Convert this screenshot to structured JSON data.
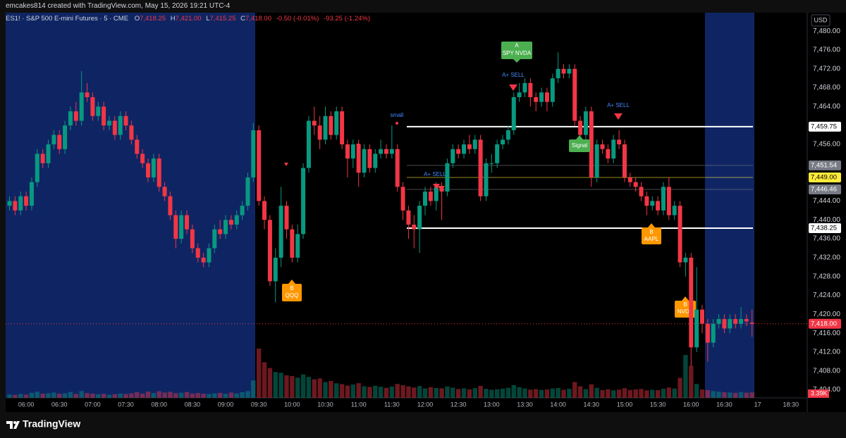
{
  "header": {
    "credit": "emcakes814 created with TradingView.com, May 15, 2026 19:21 UTC-4",
    "symbol": "ES1! · S&P 500 E-mini Futures · 5 · CME",
    "legend": [
      {
        "key": "O",
        "value": "7,418.25"
      },
      {
        "key": "H",
        "value": "7,421.00"
      },
      {
        "key": "L",
        "value": "7,415.25"
      },
      {
        "key": "C",
        "value": "7,418.00"
      }
    ],
    "change": "-0.50 (-0.01%)",
    "day_change": "-93.25 (-1.24%)",
    "currency": "USD"
  },
  "footer": {
    "logo": "TradingView"
  },
  "annotations": {
    "labels": [
      {
        "lines": [
          "A",
          "SPY NVDA"
        ]
      },
      {
        "lines": [
          "B",
          "QQQ"
        ]
      },
      {
        "lines": [
          "B",
          "AAPL"
        ]
      },
      {
        "lines": [
          "B",
          "NVDA"
        ]
      },
      {
        "lines": [
          "Signal"
        ]
      }
    ],
    "texts": [
      "A+ SELL",
      "A+ SELL",
      "A+ SELL",
      "small"
    ]
  },
  "chart_data": {
    "type": "candlestick",
    "grid": false,
    "categories": [
      null,
      null,
      null,
      "06:00",
      null,
      null,
      null,
      null,
      null,
      "06:30",
      null,
      null,
      null,
      null,
      null,
      "07:00",
      null,
      null,
      null,
      null,
      null,
      "07:30",
      null,
      null,
      null,
      null,
      null,
      "08:00",
      null,
      null,
      null,
      null,
      null,
      "08:30",
      null,
      null,
      null,
      null,
      null,
      "09:00",
      null,
      null,
      null,
      null,
      null,
      "09:30",
      null,
      null,
      null,
      null,
      null,
      "10:00",
      null,
      null,
      null,
      null,
      null,
      "10:30",
      null,
      null,
      null,
      null,
      null,
      "11:00",
      null,
      null,
      null,
      null,
      null,
      "11:30",
      null,
      null,
      null,
      null,
      null,
      "12:00",
      null,
      null,
      null,
      null,
      null,
      "12:30",
      null,
      null,
      null,
      null,
      null,
      "13:00",
      null,
      null,
      null,
      null,
      null,
      "13:30",
      null,
      null,
      null,
      null,
      null,
      "14:00",
      null,
      null,
      null,
      null,
      null,
      "14:30",
      null,
      null,
      null,
      null,
      null,
      "15:00",
      null,
      null,
      null,
      null,
      null,
      "15:30",
      null,
      null,
      null,
      null,
      null,
      "16:00",
      null,
      null,
      null,
      null,
      null,
      "16:30",
      null,
      null,
      null,
      null,
      null,
      "17",
      null,
      null,
      null,
      null,
      null,
      "18:30"
    ],
    "candles": {
      "up_color": "#089981",
      "down_color": "#f23645",
      "volume_label": "3.39K",
      "open": [
        7443,
        7444,
        7442,
        7445,
        7443,
        7448,
        7454,
        7452,
        7456,
        7458,
        7455,
        7460,
        7463,
        7461,
        7467,
        7466,
        7462,
        7464,
        7460,
        7461,
        7458,
        7462,
        7460,
        7457,
        7454,
        7452,
        7449,
        7453,
        7447,
        7445,
        7441,
        7436,
        7441,
        7438,
        7434,
        7432,
        7431,
        7434,
        7438,
        7437,
        7440,
        7439,
        7441,
        7443,
        7449,
        7459,
        7444,
        7440,
        7427,
        7432,
        7443,
        7438,
        7432,
        7437,
        7451,
        7461,
        7460,
        7457,
        7462,
        7458,
        7463,
        7456,
        7453,
        7456,
        7450,
        7455,
        7451,
        7454,
        7455,
        7454,
        7455,
        7447,
        7442,
        7439,
        7438,
        7443,
        7446,
        7444,
        7447,
        7446,
        7452,
        7455,
        7454,
        7456,
        7455,
        7457,
        7445,
        7452,
        7452,
        7456,
        7457,
        7459,
        7466,
        7467,
        7469,
        7466,
        7465,
        7467,
        7465,
        7470,
        7472,
        7471,
        7472,
        7461,
        7458,
        7463,
        7449,
        7456,
        7455,
        7453,
        7457,
        7456,
        7449,
        7448,
        7447,
        7445,
        7443,
        7444,
        7442,
        7447,
        7441,
        7443,
        7431,
        7432,
        7413,
        7421,
        7418,
        7414,
        7418,
        7419,
        7417,
        7419,
        7418,
        7419,
        7418.25,
        null,
        null,
        null,
        null,
        null,
        null,
        null
      ],
      "high": [
        7445,
        7445,
        7446,
        7446,
        7449,
        7455,
        7455,
        7457,
        7459,
        7459,
        7461,
        7464,
        7465,
        7471.5,
        7469,
        7467,
        7465,
        7465,
        7462,
        7462,
        7463,
        7463,
        7461,
        7458,
        7455,
        7453,
        7454,
        7454,
        7448,
        7446,
        7442,
        7442,
        7442,
        7439,
        7435,
        7433,
        7435,
        7439,
        7440,
        7441,
        7441,
        7442,
        7444,
        7450,
        7460.5,
        7460,
        7445,
        7441,
        7434,
        7447,
        7444,
        7439,
        7439,
        7452,
        7462,
        7464,
        7462,
        7464,
        7463,
        7464,
        7464,
        7457,
        7457,
        7457,
        7456,
        7456,
        7455,
        7457,
        7456,
        7460,
        7456,
        7448,
        7443,
        7441,
        7444,
        7447,
        7447,
        7448,
        7448,
        7453,
        7456,
        7456,
        7457,
        7458,
        7458,
        7458,
        7453,
        7454,
        7457,
        7458,
        7460,
        7467,
        7469,
        7470,
        7470,
        7467,
        7468,
        7468,
        7471,
        7475.5,
        7473,
        7473,
        7473,
        7462,
        7464,
        7464,
        7457,
        7457,
        7456,
        7458,
        7459,
        7457,
        7450,
        7449,
        7448,
        7446,
        7445,
        7445,
        7448,
        7449,
        7444,
        7444,
        7433,
        7433,
        7430,
        7422,
        7419,
        7419,
        7420,
        7420,
        7420,
        7420,
        7421.5,
        7420,
        7421,
        null,
        null,
        null,
        null,
        null,
        null,
        null
      ],
      "low": [
        7442,
        7441,
        7441,
        7442,
        7442,
        7447,
        7451,
        7451,
        7455,
        7454,
        7454,
        7459,
        7460,
        7460,
        7465,
        7461,
        7461,
        7459,
        7459,
        7457,
        7457,
        7459,
        7456,
        7453,
        7451,
        7448,
        7448,
        7446,
        7444,
        7440,
        7434,
        7435,
        7437,
        7433,
        7431,
        7430,
        7430,
        7433,
        7436,
        7436,
        7438,
        7438,
        7440,
        7442,
        7448,
        7443,
        7438,
        7426,
        7422.5,
        7430,
        7436,
        7431,
        7431,
        7436,
        7450,
        7458,
        7455,
        7456,
        7457,
        7457,
        7455,
        7449,
        7451,
        7447,
        7449,
        7450,
        7450,
        7453,
        7453,
        7453,
        7446,
        7440,
        7436,
        7434,
        7433,
        7441,
        7443,
        7442,
        7440,
        7445,
        7451,
        7453,
        7453,
        7454,
        7454,
        7444,
        7444,
        7450,
        7451,
        7455,
        7456,
        7458,
        7465,
        7466,
        7464,
        7463,
        7464,
        7463,
        7464,
        7469,
        7470,
        7470,
        7460,
        7457,
        7457,
        7447,
        7448,
        7454,
        7452,
        7452,
        7455,
        7448,
        7447,
        7446,
        7444,
        7441,
        7442,
        7441,
        7441,
        7440,
        7440,
        7430,
        7428,
        7409,
        7412,
        7416,
        7410,
        7413,
        7417,
        7416,
        7416,
        7417,
        7417,
        7417.5,
        7415.25,
        null,
        null,
        null,
        null,
        null,
        null,
        null
      ],
      "close": [
        7444,
        7442,
        7445,
        7443,
        7448,
        7454,
        7452,
        7456,
        7458,
        7455,
        7460,
        7463,
        7461,
        7467,
        7466,
        7462,
        7464,
        7460,
        7461,
        7458,
        7462,
        7460,
        7457,
        7454,
        7452,
        7449,
        7453,
        7447,
        7445,
        7441,
        7436,
        7441,
        7438,
        7434,
        7432,
        7431,
        7434,
        7438,
        7437,
        7440,
        7439,
        7441,
        7443,
        7449,
        7459,
        7444,
        7440,
        7427,
        7432,
        7443,
        7438,
        7432,
        7437,
        7451,
        7461,
        7460,
        7457,
        7462,
        7458,
        7463,
        7456,
        7453,
        7456,
        7450,
        7455,
        7451,
        7454,
        7455,
        7454,
        7455,
        7447,
        7442,
        7439,
        7438,
        7443,
        7446,
        7444,
        7447,
        7446,
        7452,
        7455,
        7454,
        7456,
        7455,
        7457,
        7445,
        7452,
        7452,
        7456,
        7457,
        7459,
        7466,
        7467,
        7469,
        7466,
        7465,
        7467,
        7465,
        7470,
        7472,
        7471,
        7472,
        7461,
        7458,
        7463,
        7449,
        7456,
        7455,
        7453,
        7457,
        7456,
        7449,
        7448,
        7447,
        7445,
        7443,
        7444,
        7442,
        7447,
        7441,
        7443,
        7431,
        7432,
        7413,
        7421,
        7418,
        7414,
        7418,
        7419,
        7417,
        7419,
        7418,
        7419,
        7418.5,
        7418,
        null,
        null,
        null,
        null,
        null,
        null,
        null
      ],
      "volume": [
        2100,
        1800,
        2400,
        2000,
        3100,
        3800,
        2600,
        2900,
        3300,
        2500,
        2800,
        3600,
        2400,
        4200,
        3000,
        2600,
        2200,
        2500,
        1900,
        2300,
        2700,
        2400,
        2800,
        3500,
        2600,
        3900,
        3000,
        4100,
        3300,
        3700,
        2900,
        3200,
        3600,
        2700,
        3000,
        2600,
        2400,
        2800,
        3100,
        2500,
        3300,
        2700,
        3500,
        4200,
        10800,
        30500,
        22000,
        18500,
        16000,
        15500,
        14000,
        13500,
        12500,
        14500,
        13000,
        11500,
        12000,
        9800,
        10500,
        9000,
        8500,
        7600,
        8200,
        9100,
        7200,
        6800,
        7500,
        6900,
        6200,
        7000,
        8600,
        7800,
        7100,
        6400,
        7300,
        5800,
        6600,
        6100,
        5900,
        7000,
        6300,
        5500,
        5900,
        5200,
        6000,
        7400,
        5600,
        5000,
        5300,
        5700,
        6200,
        7900,
        6600,
        5800,
        5100,
        5400,
        4900,
        5200,
        5800,
        6100,
        5000,
        5600,
        9800,
        7200,
        5400,
        8400,
        6200,
        4800,
        5300,
        4700,
        5100,
        6000,
        4900,
        5200,
        5500,
        4600,
        5000,
        4800,
        5600,
        6400,
        5800,
        12400,
        26500,
        19800,
        8600,
        5200,
        4800,
        4200,
        3800,
        3500,
        3300,
        3100,
        3600,
        3200,
        3390,
        null,
        null,
        null,
        null,
        null,
        null,
        null
      ]
    },
    "ylim": [
      7402.3,
      7483.9
    ],
    "yticks": [
      {
        "value": 7480,
        "label": "7,480.00"
      },
      {
        "value": 7476,
        "label": "7,476.00"
      },
      {
        "value": 7472,
        "label": "7,472.00"
      },
      {
        "value": 7468,
        "label": "7,468.00"
      },
      {
        "value": 7464,
        "label": "7,464.00"
      },
      {
        "value": 7456,
        "label": "7,456.00"
      },
      {
        "value": 7444,
        "label": "7,444.00"
      },
      {
        "value": 7440,
        "label": "7,440.00"
      },
      {
        "value": 7436,
        "label": "7,436.00"
      },
      {
        "value": 7432,
        "label": "7,432.00"
      },
      {
        "value": 7428,
        "label": "7,428.00"
      },
      {
        "value": 7424,
        "label": "7,424.00"
      },
      {
        "value": 7420,
        "label": "7,420.00"
      },
      {
        "value": 7416,
        "label": "7,416.00"
      },
      {
        "value": 7412,
        "label": "7,412.00"
      },
      {
        "value": 7408,
        "label": "7,408.00"
      },
      {
        "value": 7404,
        "label": "7,404.00"
      }
    ],
    "levels": [
      {
        "value": 7459.75,
        "label": "7,459.75",
        "color": "#ffffff",
        "text_color": "#000000",
        "line_width": 2
      },
      {
        "value": 7451.54,
        "label": "7,451.54",
        "color": "#787b86",
        "text_color": "#ffffff",
        "line_width": 1
      },
      {
        "value": 7449,
        "label": "7,449.00",
        "color": "#ffeb3b",
        "text_color": "#000000",
        "line_width": 1
      },
      {
        "value": 7446.46,
        "label": "7,446.46",
        "color": "#787b86",
        "text_color": "#ffffff",
        "line_width": 1
      },
      {
        "value": 7438.25,
        "label": "7,438.25",
        "color": "#ffffff",
        "text_color": "#000000",
        "line_width": 2
      }
    ],
    "price_tag": {
      "value": 7418,
      "label": "7,418.00",
      "color": "#f23645"
    }
  }
}
